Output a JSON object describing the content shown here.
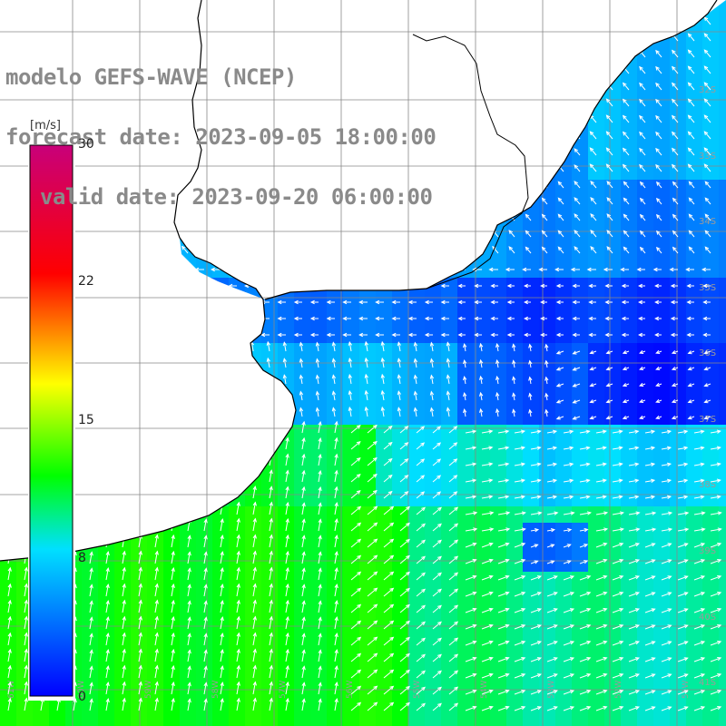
{
  "title": {
    "line1": "modelo GEFS-WAVE (NCEP)",
    "line2": "forecast date: 2023-09-05 18:00:00",
    "line3": "valid date: 2023-09-20 06:00:00"
  },
  "colorbar": {
    "unit": "[m/s]",
    "ticks": [
      "30",
      "22",
      "15",
      "8",
      "0"
    ],
    "range": [
      0,
      30
    ],
    "colors": [
      "#0000ff",
      "#00e0ff",
      "#00ff00",
      "#ffff00",
      "#ff0000",
      "#c8007a"
    ]
  },
  "lat_labels": [
    "32S",
    "33S",
    "34S",
    "35S",
    "36S",
    "37S",
    "38S",
    "39S",
    "40S",
    "41S"
  ],
  "lon_labels": [
    "61W",
    "60W",
    "59W",
    "58W",
    "57W",
    "56W",
    "55W",
    "54W",
    "53W",
    "52W",
    "51W"
  ],
  "colors": {
    "land": "#ffffff",
    "coast": "#000000",
    "grid": "#888888",
    "arrow": "#ffffff",
    "title": "#8a8a8a"
  }
}
